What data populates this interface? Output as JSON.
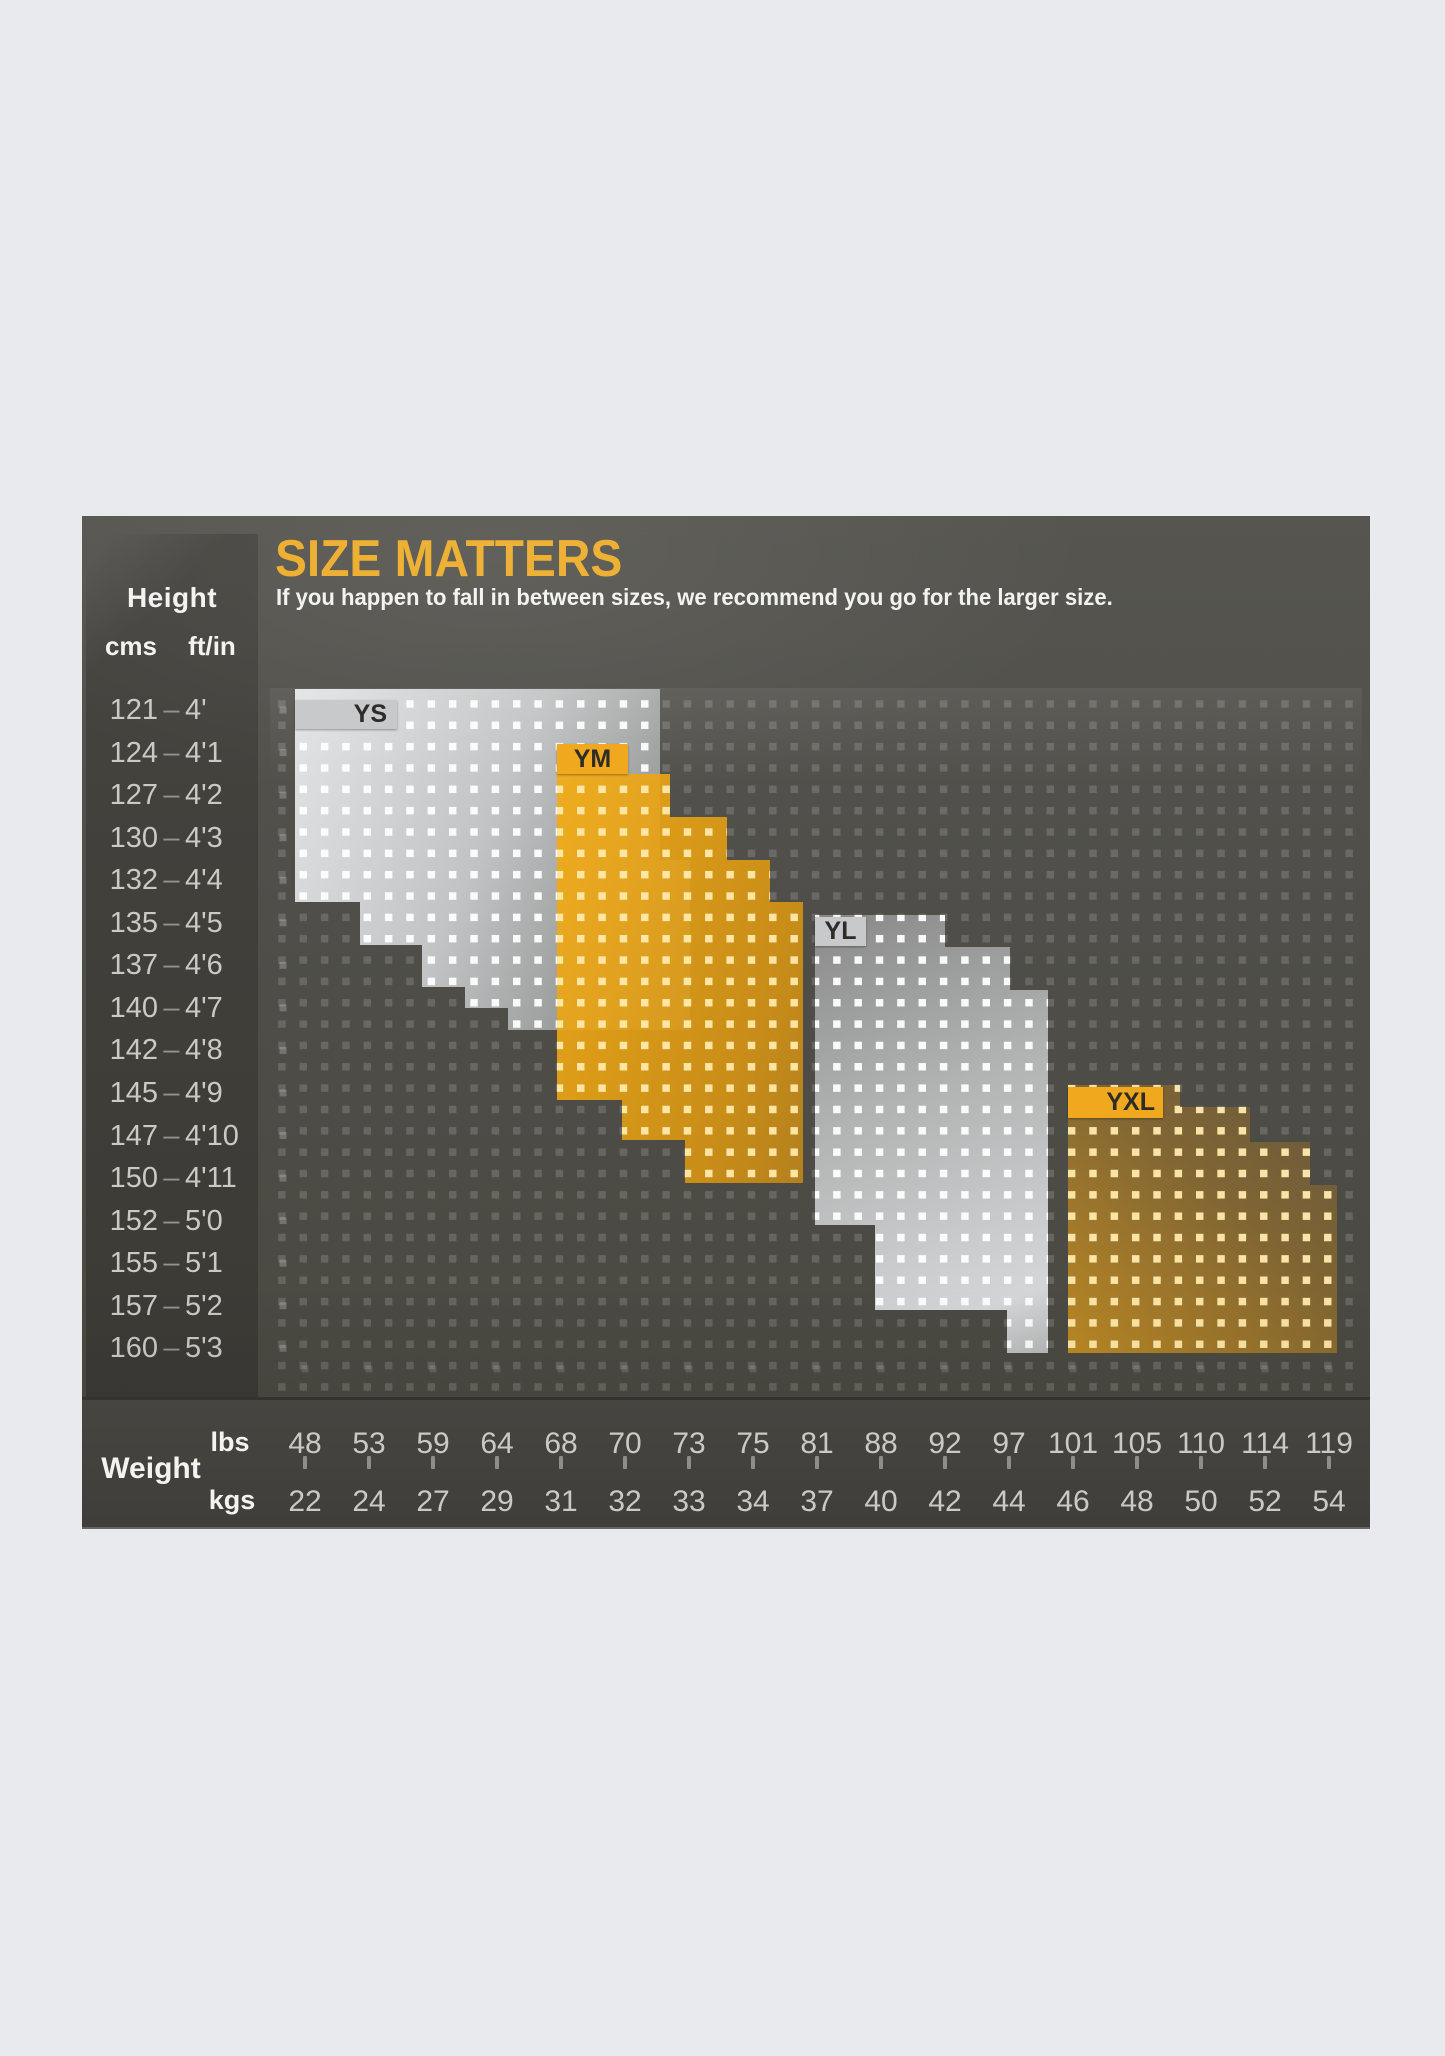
{
  "title": "SIZE MATTERS",
  "subtitle": "If you happen to fall in between sizes, we recommend you go for the larger size.",
  "height_axis": {
    "label": "Height",
    "unit_cm": "cms",
    "unit_ft": "ft/in",
    "separator": "–",
    "rows": [
      {
        "cm": "121",
        "ft": "4'"
      },
      {
        "cm": "124",
        "ft": "4'1"
      },
      {
        "cm": "127",
        "ft": "4'2"
      },
      {
        "cm": "130",
        "ft": "4'3"
      },
      {
        "cm": "132",
        "ft": "4'4"
      },
      {
        "cm": "135",
        "ft": "4'5"
      },
      {
        "cm": "137",
        "ft": "4'6"
      },
      {
        "cm": "140",
        "ft": "4'7"
      },
      {
        "cm": "142",
        "ft": "4'8"
      },
      {
        "cm": "145",
        "ft": "4'9"
      },
      {
        "cm": "147",
        "ft": "4'10"
      },
      {
        "cm": "150",
        "ft": "4'11"
      },
      {
        "cm": "152",
        "ft": "5'0"
      },
      {
        "cm": "155",
        "ft": "5'1"
      },
      {
        "cm": "157",
        "ft": "5'2"
      },
      {
        "cm": "160",
        "ft": "5'3"
      }
    ]
  },
  "weight_axis": {
    "label": "Weight",
    "unit_lbs": "lbs",
    "unit_kgs": "kgs",
    "lbs": [
      "48",
      "53",
      "59",
      "64",
      "68",
      "70",
      "73",
      "75",
      "81",
      "88",
      "92",
      "97",
      "101",
      "105",
      "110",
      "114",
      "119"
    ],
    "kgs": [
      "22",
      "24",
      "27",
      "29",
      "31",
      "32",
      "33",
      "34",
      "37",
      "40",
      "42",
      "44",
      "46",
      "48",
      "50",
      "52",
      "54"
    ]
  },
  "sizes": [
    {
      "code": "YS",
      "color": "silver"
    },
    {
      "code": "YM",
      "color": "gold"
    },
    {
      "code": "YL",
      "color": "silver"
    },
    {
      "code": "YXL",
      "color": "gold"
    }
  ],
  "colors": {
    "page_background": "#e9eaee",
    "panel_background": "#4f4e49",
    "title_gold": "#ecac29",
    "label_gold": "#f0a81f",
    "label_silver": "#c7c9cb",
    "label_text": "#2d2c29",
    "axis_text": "#cac9c4",
    "header_text": "#f3f3f1"
  },
  "chart_data": {
    "type": "heatmap",
    "title": "SIZE MATTERS",
    "note": "If you happen to fall in between sizes, we recommend you go for the larger size.",
    "x_axis": {
      "label": "Weight",
      "units": [
        "lbs",
        "kgs"
      ],
      "lbs": [
        48,
        53,
        59,
        64,
        68,
        70,
        73,
        75,
        81,
        88,
        92,
        97,
        101,
        105,
        110,
        114,
        119
      ],
      "kgs": [
        22,
        24,
        27,
        29,
        31,
        32,
        33,
        34,
        37,
        40,
        42,
        44,
        46,
        48,
        50,
        52,
        54
      ]
    },
    "y_axis": {
      "label": "Height",
      "units": [
        "cms",
        "ft/in"
      ],
      "cms": [
        121,
        124,
        127,
        130,
        132,
        135,
        137,
        140,
        142,
        145,
        147,
        150,
        152,
        155,
        157,
        160
      ],
      "ft_in": [
        "4'",
        "4'1",
        "4'2",
        "4'3",
        "4'4",
        "4'5",
        "4'6",
        "4'7",
        "4'8",
        "4'9",
        "4'10",
        "4'11",
        "5'0",
        "5'1",
        "5'2",
        "5'3"
      ]
    },
    "regions": [
      {
        "size": "YS",
        "style": "silver",
        "weight_lbs_range": [
          48,
          73
        ],
        "height_cms_range": [
          121,
          142
        ]
      },
      {
        "size": "YM",
        "style": "gold",
        "weight_lbs_range": [
          64,
          81
        ],
        "height_cms_range": [
          127,
          150
        ]
      },
      {
        "size": "YL",
        "style": "silver",
        "weight_lbs_range": [
          81,
          97
        ],
        "height_cms_range": [
          135,
          160
        ]
      },
      {
        "size": "YXL",
        "style": "gold",
        "weight_lbs_range": [
          101,
          119
        ],
        "height_cms_range": [
          145,
          160
        ]
      }
    ],
    "legend_position": "inline-labels",
    "grid": "dot-matrix"
  }
}
